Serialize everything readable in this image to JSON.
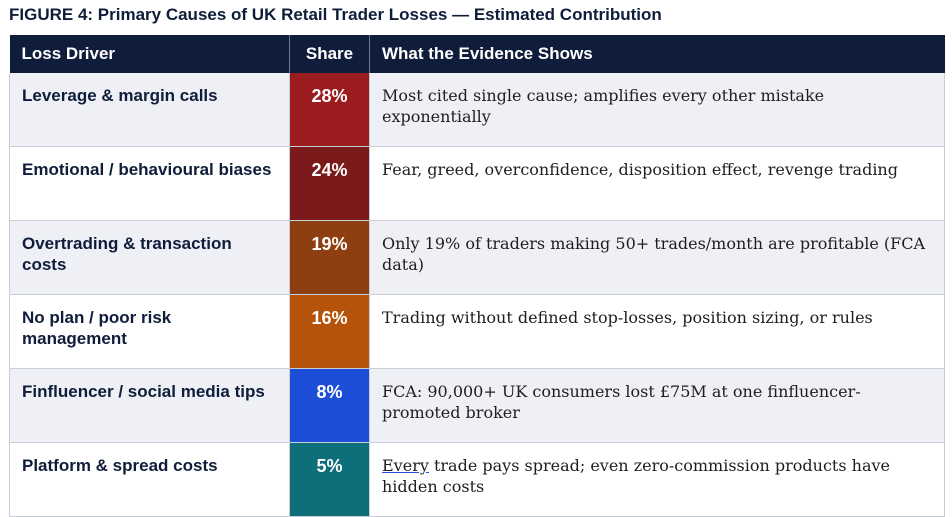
{
  "title": "FIGURE 4: Primary Causes of UK Retail Trader Losses — Estimated Contribution",
  "headers": {
    "driver": "Loss Driver",
    "share": "Share",
    "evidence": "What the Evidence Shows"
  },
  "rows": [
    {
      "driver": "Leverage & margin calls",
      "share": "28%",
      "color": "#9b1c1f",
      "evidence": "Most cited single cause; amplifies every other mistake exponentially"
    },
    {
      "driver": "Emotional / behavioural biases",
      "share": "24%",
      "color": "#7a1a1a",
      "evidence": "Fear, greed, overconfidence, disposition effect, revenge trading"
    },
    {
      "driver": "Overtrading & transaction costs",
      "share": "19%",
      "color": "#8e3f12",
      "evidence": "Only 19% of traders making 50+ trades/month are profitable (FCA data)"
    },
    {
      "driver": "No plan / poor risk management",
      "share": "16%",
      "color": "#b45309",
      "evidence": "Trading without defined stop-losses, position sizing, or rules"
    },
    {
      "driver": "Finfluencer / social media tips",
      "share": "8%",
      "color": "#1d4ed8",
      "evidence": "FCA: 90,000+ UK consumers lost £75M at one finfluencer-promoted broker"
    },
    {
      "driver": "Platform & spread costs",
      "share": "5%",
      "color": "#0e6e7a",
      "evidence_first": "Every",
      "evidence": " trade pays spread; even zero-commission products have hidden costs"
    }
  ]
}
